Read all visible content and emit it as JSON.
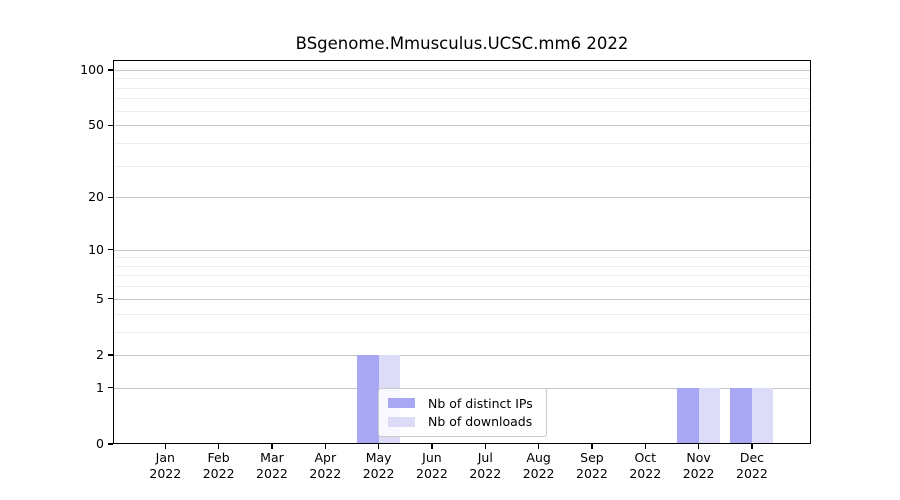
{
  "title": "BSgenome.Mmusculus.UCSC.mm6 2022",
  "colors": {
    "ips_bar": "#a7a7f3",
    "downloads_bar": "#dcdcf8",
    "grid_major": "#c6c6c6",
    "grid_minor": "#ededed",
    "axis": "#000000",
    "legend_border": "#c9c9c9"
  },
  "legend": {
    "items": [
      {
        "label": "Nb of distinct IPs"
      },
      {
        "label": "Nb of downloads"
      }
    ]
  },
  "chart_data": {
    "type": "bar",
    "title": "BSgenome.Mmusculus.UCSC.mm6 2022",
    "categories": [
      "Jan",
      "Feb",
      "Mar",
      "Apr",
      "May",
      "Jun",
      "Jul",
      "Aug",
      "Sep",
      "Oct",
      "Nov",
      "Dec"
    ],
    "category_year": "2022",
    "series": [
      {
        "name": "Nb of distinct IPs",
        "color": "#a7a7f3",
        "values": [
          0,
          0,
          0,
          0,
          2,
          0,
          0,
          0,
          0,
          0,
          1,
          1
        ]
      },
      {
        "name": "Nb of downloads",
        "color": "#dcdcf8",
        "values": [
          0,
          0,
          0,
          0,
          2,
          0,
          0,
          0,
          0,
          0,
          1,
          1
        ]
      }
    ],
    "xlabel": "",
    "ylabel": "",
    "y_scale": "log1p",
    "ylim": [
      0,
      113
    ],
    "y_ticks_major": [
      0,
      1,
      2,
      5,
      10,
      20,
      50,
      100
    ],
    "y_ticks_minor": [
      3,
      4,
      6,
      7,
      8,
      9,
      30,
      40,
      60,
      70,
      80,
      90
    ],
    "grid": true,
    "legend_position": "inside-lower-center"
  }
}
